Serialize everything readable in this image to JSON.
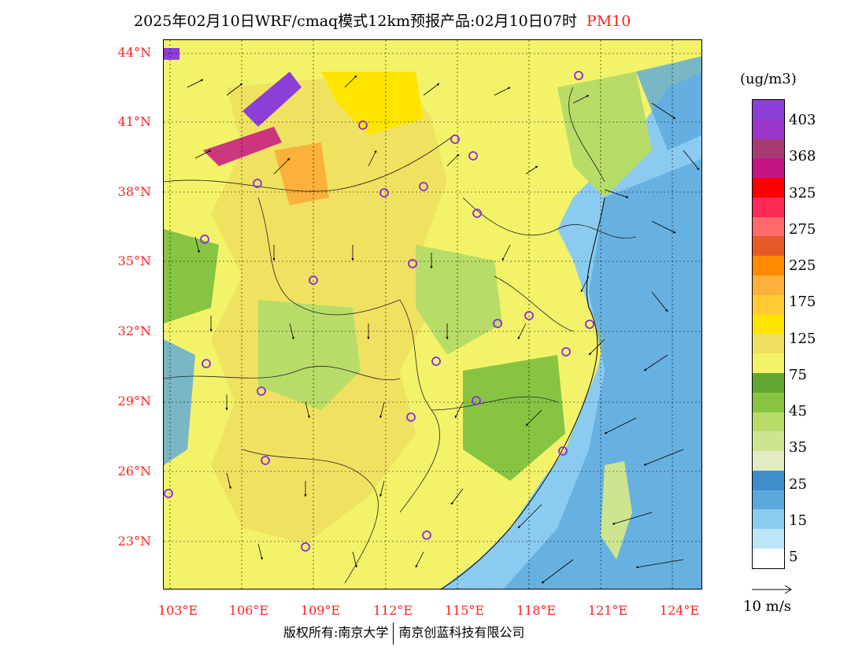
{
  "title": {
    "text": "2025年02月10日WRF/cmaq模式12km预报产品:02月10日07时",
    "pollutant": "PM10"
  },
  "axes": {
    "lat_labels": [
      "44°N",
      "41°N",
      "38°N",
      "35°N",
      "32°N",
      "29°N",
      "26°N",
      "23°N"
    ],
    "lon_labels": [
      "103°E",
      "106°E",
      "109°E",
      "112°E",
      "115°E",
      "118°E",
      "121°E",
      "124°E"
    ]
  },
  "colorbar": {
    "unit": "(ug/m3)",
    "labels": [
      "403",
      "368",
      "325",
      "275",
      "225",
      "175",
      "125",
      "75",
      "45",
      "35",
      "25",
      "15",
      "5"
    ],
    "colors": [
      "#8c3fd6",
      "#9a37c8",
      "#a83a73",
      "#c51584",
      "#ff0000",
      "#ff2a55",
      "#ff6a6a",
      "#e65a2a",
      "#ff8c00",
      "#fbb13c",
      "#ffcc33",
      "#ffe400",
      "#f0e060",
      "#f3f36a",
      "#5ea832",
      "#86c442",
      "#b8dc68",
      "#cde58f",
      "#e1ecc2",
      "#3d8ec9",
      "#5ba8dc",
      "#8ccbf0",
      "#bde5f8",
      "#ffffff"
    ]
  },
  "wind_key": {
    "label": "10 m/s"
  },
  "footer": {
    "left": "版权所有:南京大学",
    "right": "南京创蓝科技有限公司"
  },
  "legend_colors": {
    "title_pollutant": "#ff2020",
    "axis_labels": "#ff2020",
    "city_marker": "#8a2be2"
  }
}
